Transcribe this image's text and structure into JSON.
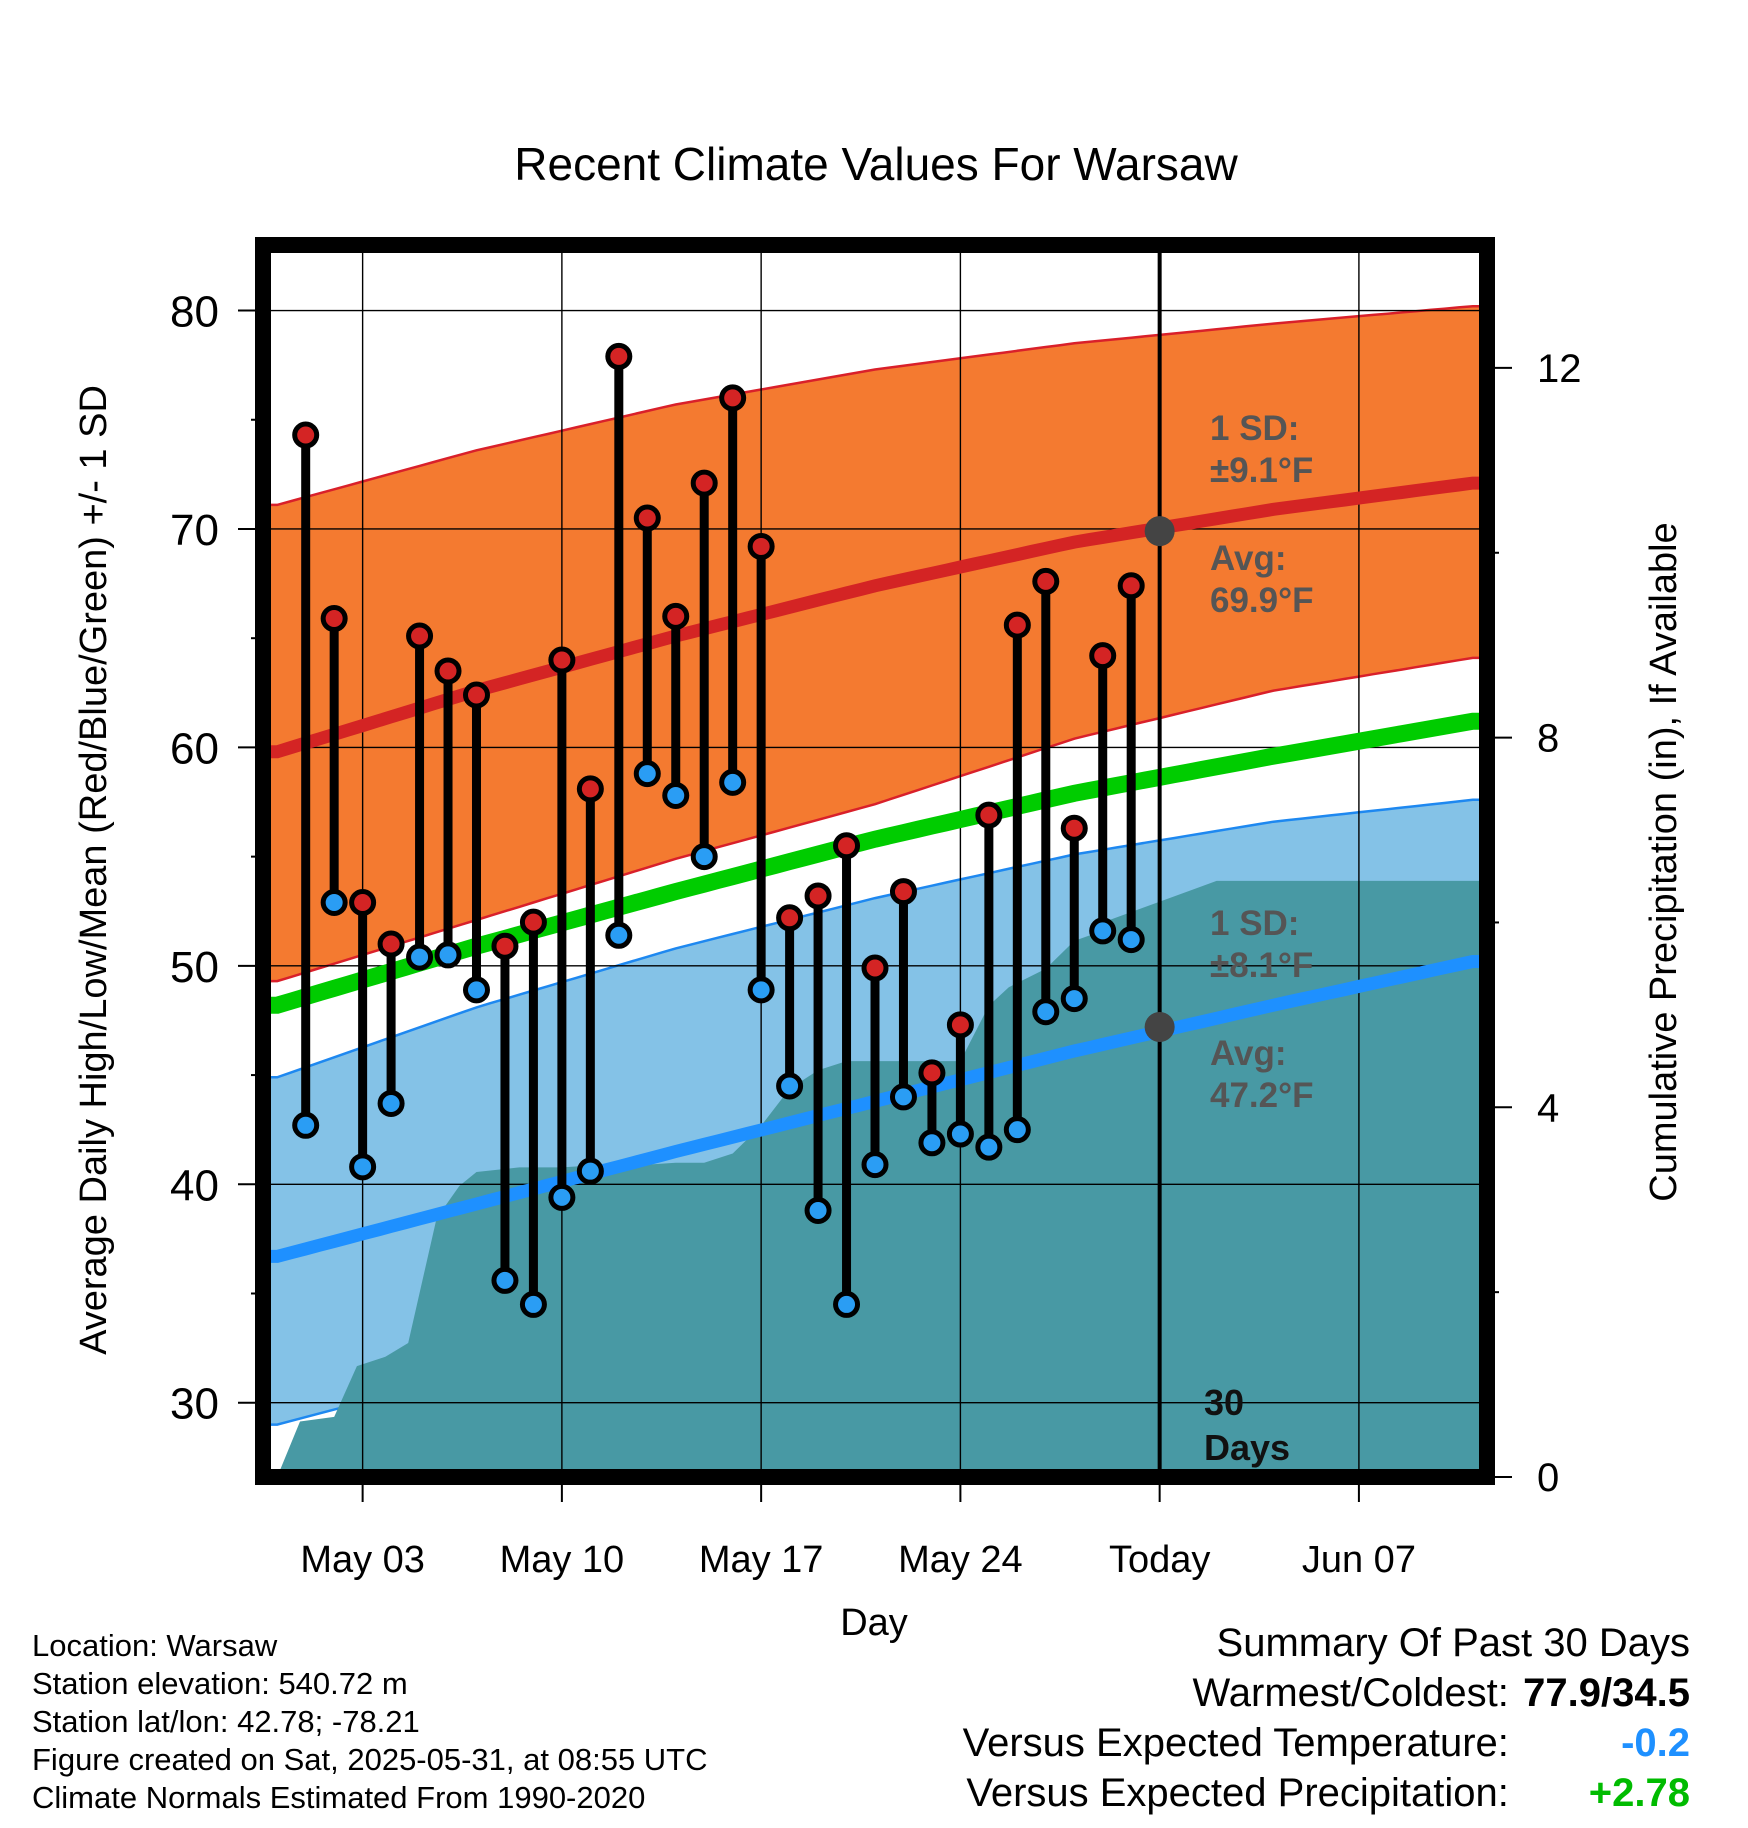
{
  "chart_data": {
    "type": "line",
    "title": "Recent Climate Values For Warsaw",
    "xlabel": "Day",
    "ylabel": "Average Daily High/Low/Mean (Red/Blue/Green) +/- 1 SD",
    "y2label": "Cumulative Precipitation (in), If Available",
    "ylim": [
      26.6,
      83.0
    ],
    "y2lim": [
      0,
      13.33
    ],
    "xlim": [
      -3.5,
      39.5
    ],
    "yticks": [
      "30",
      "40",
      "50",
      "60",
      "70",
      "80"
    ],
    "y2ticks": [
      "0",
      "4",
      "8",
      "12"
    ],
    "xticks": [
      {
        "day": 0,
        "label": "May 03"
      },
      {
        "day": 7,
        "label": "May 10"
      },
      {
        "day": 14,
        "label": "May 17"
      },
      {
        "day": 21,
        "label": "May 24"
      },
      {
        "day": 28,
        "label": "Today"
      },
      {
        "day": 35,
        "label": "Jun 07"
      }
    ],
    "normals": {
      "x": [
        -3,
        4,
        11,
        18,
        25,
        32,
        39
      ],
      "high_avg": [
        59.8,
        62.6,
        65.1,
        67.4,
        69.4,
        70.9,
        72.1
      ],
      "high_upper": [
        71.1,
        73.6,
        75.7,
        77.3,
        78.5,
        79.4,
        80.2
      ],
      "high_lower": [
        49.3,
        52.1,
        54.9,
        57.4,
        60.4,
        62.6,
        64.1
      ],
      "mean_avg": [
        48.2,
        50.9,
        53.4,
        55.8,
        57.9,
        59.6,
        61.2
      ],
      "low_avg": [
        36.7,
        39.1,
        41.5,
        43.8,
        46.1,
        48.2,
        50.2
      ],
      "low_upper": [
        44.9,
        48.1,
        50.8,
        53.1,
        55.1,
        56.6,
        57.6
      ],
      "low_lower": [
        29.0,
        31.4,
        34.2,
        36.7,
        39.1,
        41.1,
        42.9
      ]
    },
    "days": [
      -2,
      -1,
      0,
      1,
      2,
      3,
      4,
      5,
      6,
      7,
      8,
      9,
      10,
      11,
      12,
      13,
      14,
      15,
      16,
      17,
      18,
      19,
      20,
      21,
      22,
      23,
      24,
      25,
      26,
      27
    ],
    "highs": [
      74.3,
      65.9,
      52.9,
      51.0,
      65.1,
      63.5,
      62.4,
      50.9,
      52.0,
      64.0,
      58.1,
      77.9,
      70.5,
      66.0,
      72.1,
      76.0,
      69.2,
      52.2,
      53.2,
      55.5,
      49.9,
      53.4,
      45.1,
      47.3,
      56.9,
      65.6,
      67.6,
      56.3,
      64.2,
      67.4
    ],
    "lows": [
      42.7,
      52.9,
      40.8,
      43.7,
      50.4,
      50.5,
      48.9,
      35.6,
      34.5,
      39.4,
      40.6,
      51.4,
      58.8,
      57.8,
      55.0,
      58.4,
      48.9,
      44.5,
      38.8,
      34.5,
      40.9,
      44.0,
      41.9,
      42.3,
      41.7,
      42.5,
      47.9,
      48.5,
      51.6,
      51.2
    ],
    "precip": {
      "x": [
        -3,
        -2.2,
        -1,
        -0.2,
        0.8,
        1.6,
        2.6,
        3.4,
        4,
        5.5,
        7,
        8.5,
        10,
        11,
        12,
        13,
        14,
        15,
        16,
        17,
        18,
        19,
        20,
        21,
        22,
        22.7,
        24,
        25,
        25.9,
        26,
        30,
        35,
        39.5
      ],
      "values": [
        0.0,
        0.6,
        0.65,
        1.2,
        1.3,
        1.45,
        2.8,
        3.15,
        3.3,
        3.35,
        3.35,
        3.38,
        3.38,
        3.4,
        3.4,
        3.5,
        3.8,
        4.2,
        4.4,
        4.5,
        4.5,
        4.5,
        4.5,
        4.5,
        5.1,
        5.3,
        5.5,
        5.8,
        5.9,
        6.0,
        6.45,
        6.45,
        6.45
      ]
    },
    "today_marker": {
      "day": 28,
      "high_avg": 69.9,
      "low_avg": 47.2
    },
    "annotations": {
      "high_sd_label": "1 SD:",
      "high_sd_value": "±9.1°F",
      "high_avg_label": "Avg:",
      "high_avg_value": "69.9°F",
      "low_sd_label": "1 SD:",
      "low_sd_value": "±8.1°F",
      "low_avg_label": "Avg:",
      "low_avg_value": "47.2°F",
      "days_count": "30",
      "days_word": "Days"
    },
    "colors": {
      "high_band": "#f47a30",
      "high_band_edge": "#d9202a",
      "high_avg_line": "#d42424",
      "low_band": "#84c2e7",
      "low_band_edge": "#1e88f0",
      "low_avg_line": "#1e90ff",
      "mean_line": "#00cc00",
      "precip_fill": "#4899a4",
      "high_dot": "#d42424",
      "low_dot": "#2a9df4",
      "marker": "#444444",
      "annotation_text": "#555555"
    }
  },
  "info": {
    "location": "Location: Warsaw",
    "elevation": "Station elevation: 540.72 m",
    "latlon": "Station lat/lon: 42.78; -78.21",
    "created": "Figure created on Sat, 2025-05-31, at 08:55 UTC",
    "normals": "Climate Normals Estimated From 1990-2020"
  },
  "summary": {
    "title": "Summary Of Past 30 Days",
    "warm_cold_label": "Warmest/Coldest:",
    "warm_cold_value": "77.9/34.5",
    "temp_label": "Versus Expected Temperature:",
    "temp_value": "-0.2",
    "precip_label": "Versus Expected Precipitation:",
    "precip_value": "+2.78"
  }
}
